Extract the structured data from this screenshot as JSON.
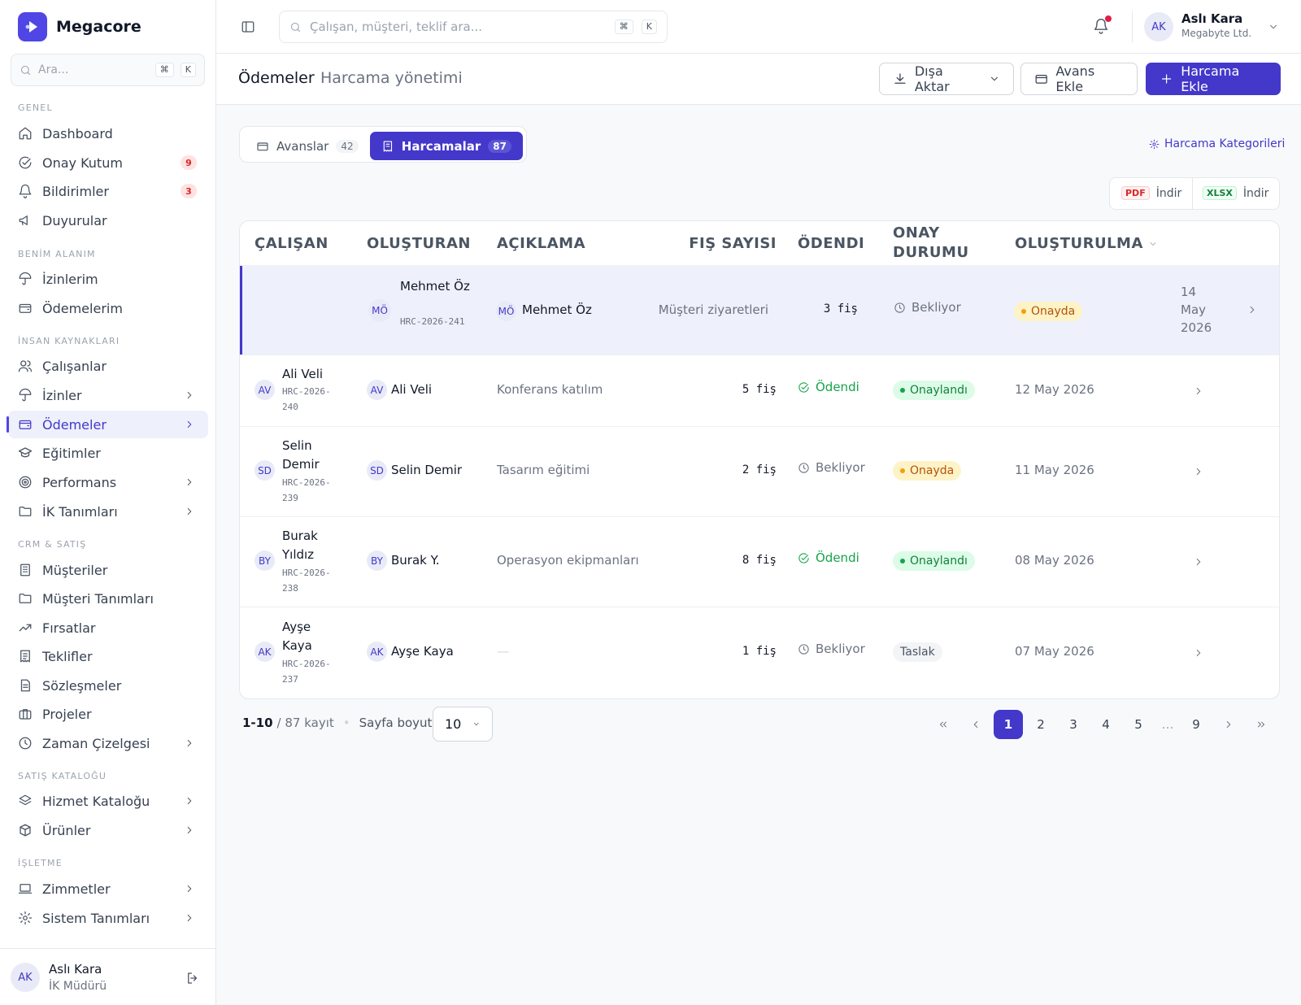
{
  "app": {
    "name": "Megacore"
  },
  "sidebar": {
    "search_placeholder": "Ara...",
    "kbd_cmd": "⌘",
    "kbd_k": "K",
    "sections": [
      "GENEL",
      "BENİM ALANIM",
      "İNSAN KAYNAKLARI",
      "CRM & SATIŞ",
      "SATIŞ KATALOĞU",
      "İŞLETME"
    ],
    "items": [
      {
        "label": "Dashboard",
        "icon": "home-icon"
      },
      {
        "label": "Onay Kutum",
        "icon": "check-circle-icon",
        "badge": "9"
      },
      {
        "label": "Bildirimler",
        "icon": "bell-icon",
        "badge": "3"
      },
      {
        "label": "Duyurular",
        "icon": "megaphone-icon"
      },
      {
        "label": "İzinlerim",
        "icon": "umbrella-icon"
      },
      {
        "label": "Ödemelerim",
        "icon": "wallet-icon"
      },
      {
        "label": "Çalışanlar",
        "icon": "users-icon"
      },
      {
        "label": "İzinler",
        "icon": "umbrella-icon"
      },
      {
        "label": "Ödemeler",
        "icon": "wallet-icon",
        "active": true
      },
      {
        "label": "Eğitimler",
        "icon": "graduation-cap-icon"
      },
      {
        "label": "Performans",
        "icon": "target-icon"
      },
      {
        "label": "İK Tanımları",
        "icon": "folder-icon"
      },
      {
        "label": "Müşteriler",
        "icon": "building-icon"
      },
      {
        "label": "Müşteri Tanımları",
        "icon": "folder-icon"
      },
      {
        "label": "Fırsatlar",
        "icon": "trending-up-icon"
      },
      {
        "label": "Teklifler",
        "icon": "receipt-icon"
      },
      {
        "label": "Sözleşmeler",
        "icon": "file-text-icon"
      },
      {
        "label": "Projeler",
        "icon": "briefcase-icon"
      },
      {
        "label": "Zaman Çizelgesi",
        "icon": "clock-icon"
      },
      {
        "label": "Hizmet Kataloğu",
        "icon": "layers-icon"
      },
      {
        "label": "Ürünler",
        "icon": "box-icon"
      },
      {
        "label": "Zimmetler",
        "icon": "laptop-icon"
      },
      {
        "label": "Sistem Tanımları",
        "icon": "gear-icon"
      }
    ],
    "user": {
      "initials": "AK",
      "name": "Aslı Kara",
      "role": "İK Müdürü"
    }
  },
  "topbar": {
    "search_placeholder": "Çalışan, müşteri, teklif ara...",
    "kbd_cmd": "⌘",
    "kbd_k": "K",
    "user": {
      "initials": "AK",
      "name": "Aslı Kara",
      "company": "Megabyte Ltd."
    }
  },
  "page": {
    "title": "Ödemeler",
    "subtitle": "Harcama yönetimi",
    "export_label": "Dışa Aktar",
    "add_advance_label": "Avans Ekle",
    "add_expense_label": "Harcama Ekle",
    "categories_link": "Harcama Kategorileri",
    "pdf_tag": "PDF",
    "xlsx_tag": "XLSX",
    "download_label": "İndir"
  },
  "tabs": [
    {
      "label": "Avanslar",
      "count": "42"
    },
    {
      "label": "Harcamalar",
      "count": "87",
      "active": true
    }
  ],
  "table": {
    "columns": [
      "ÇALIŞAN",
      "OLUŞTURAN",
      "AÇIKLAMA",
      "FIŞ SAYISI",
      "ÖDENDI",
      "ONAY DURUMU",
      "OLUŞTURULMA"
    ],
    "rows": [
      {
        "emp_initials": "",
        "emp_name": "",
        "code": "",
        "creator_initials": "MÖ",
        "creator": "Mehmet Öz",
        "creator_sub_name": "Mehmet Öz",
        "creator_code": "HRC-2026-241",
        "desc": "Müşteri ziyaretleri",
        "receipts": "3 fiş",
        "paid": "Bekliyor",
        "paid_state": "pending",
        "approval": "Onayda",
        "approval_state": "amber",
        "date": "14 May 2026"
      },
      {
        "emp_initials": "AV",
        "emp_name": "Ali Veli",
        "code": "HRC-2026-240",
        "creator_initials": "AV",
        "creator": "Ali Veli",
        "desc": "Konferans katılım",
        "receipts": "5 fiş",
        "paid": "Ödendi",
        "paid_state": "paid",
        "approval": "Onaylandı",
        "approval_state": "green",
        "date": "12 May 2026"
      },
      {
        "emp_initials": "SD",
        "emp_name": "Selin Demir",
        "code": "HRC-2026-239",
        "creator_initials": "SD",
        "creator": "Selin Demir",
        "desc": "Tasarım eğitimi",
        "receipts": "2 fiş",
        "paid": "Bekliyor",
        "paid_state": "pending",
        "approval": "Onayda",
        "approval_state": "amber",
        "date": "11 May 2026"
      },
      {
        "emp_initials": "BY",
        "emp_name": "Burak Yıldız",
        "code": "HRC-2026-238",
        "creator_initials": "BY",
        "creator": "Burak Y.",
        "desc": "Operasyon ekipmanları",
        "receipts": "8 fiş",
        "paid": "Ödendi",
        "paid_state": "paid",
        "approval": "Onaylandı",
        "approval_state": "green",
        "date": "08 May 2026"
      },
      {
        "emp_initials": "AK",
        "emp_name": "Ayşe Kaya",
        "code": "HRC-2026-237",
        "creator_initials": "AK",
        "creator": "Ayşe Kaya",
        "desc": "—",
        "receipts": "1 fiş",
        "paid": "Bekliyor",
        "paid_state": "pending",
        "approval": "Taslak",
        "approval_state": "gray",
        "date": "07 May 2026"
      }
    ]
  },
  "pagination": {
    "range": "1-10",
    "total": "/ 87 kayıt",
    "page_size_label": "Sayfa boyutu",
    "page_size": "10",
    "pages": [
      "1",
      "2",
      "3",
      "4",
      "5",
      "…",
      "9"
    ],
    "current": "1"
  },
  "colors": {
    "accent": "#4338ca",
    "danger": "#dc2626",
    "success": "#16a34a",
    "warning": "#f59e0b"
  }
}
